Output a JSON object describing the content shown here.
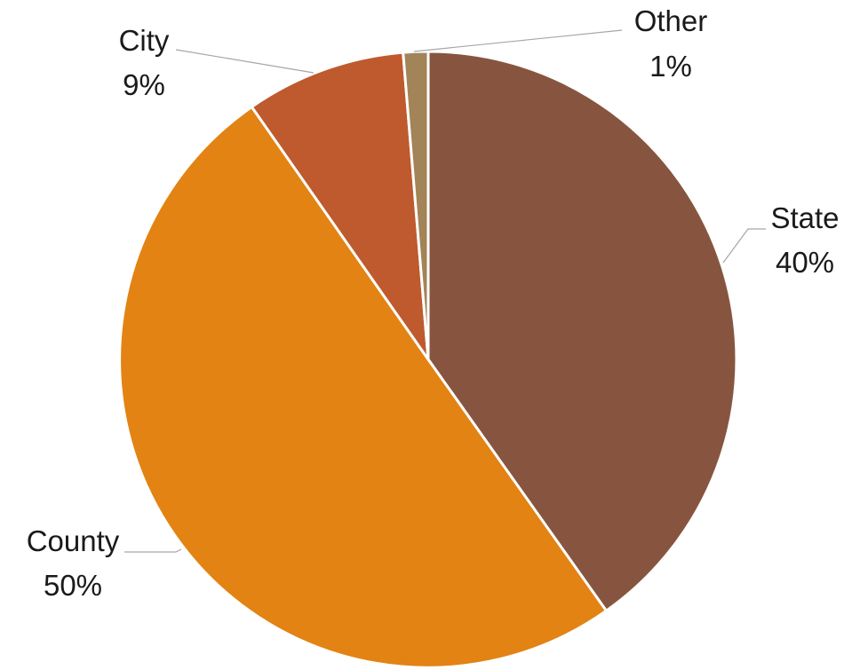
{
  "chart_data": {
    "type": "pie",
    "title": "",
    "legend": "none",
    "start_angle_deg": 0,
    "direction": "clockwise",
    "slices": [
      {
        "name": "State",
        "value": 40.2,
        "pct_label": "40%",
        "color": "#87553f"
      },
      {
        "name": "County",
        "value": 50.1,
        "pct_label": "50%",
        "color": "#e28313"
      },
      {
        "name": "City",
        "value": 8.4,
        "pct_label": "9%",
        "color": "#be5a2d"
      },
      {
        "name": "Other",
        "value": 1.3,
        "pct_label": "1%",
        "color": "#a28458"
      }
    ]
  }
}
